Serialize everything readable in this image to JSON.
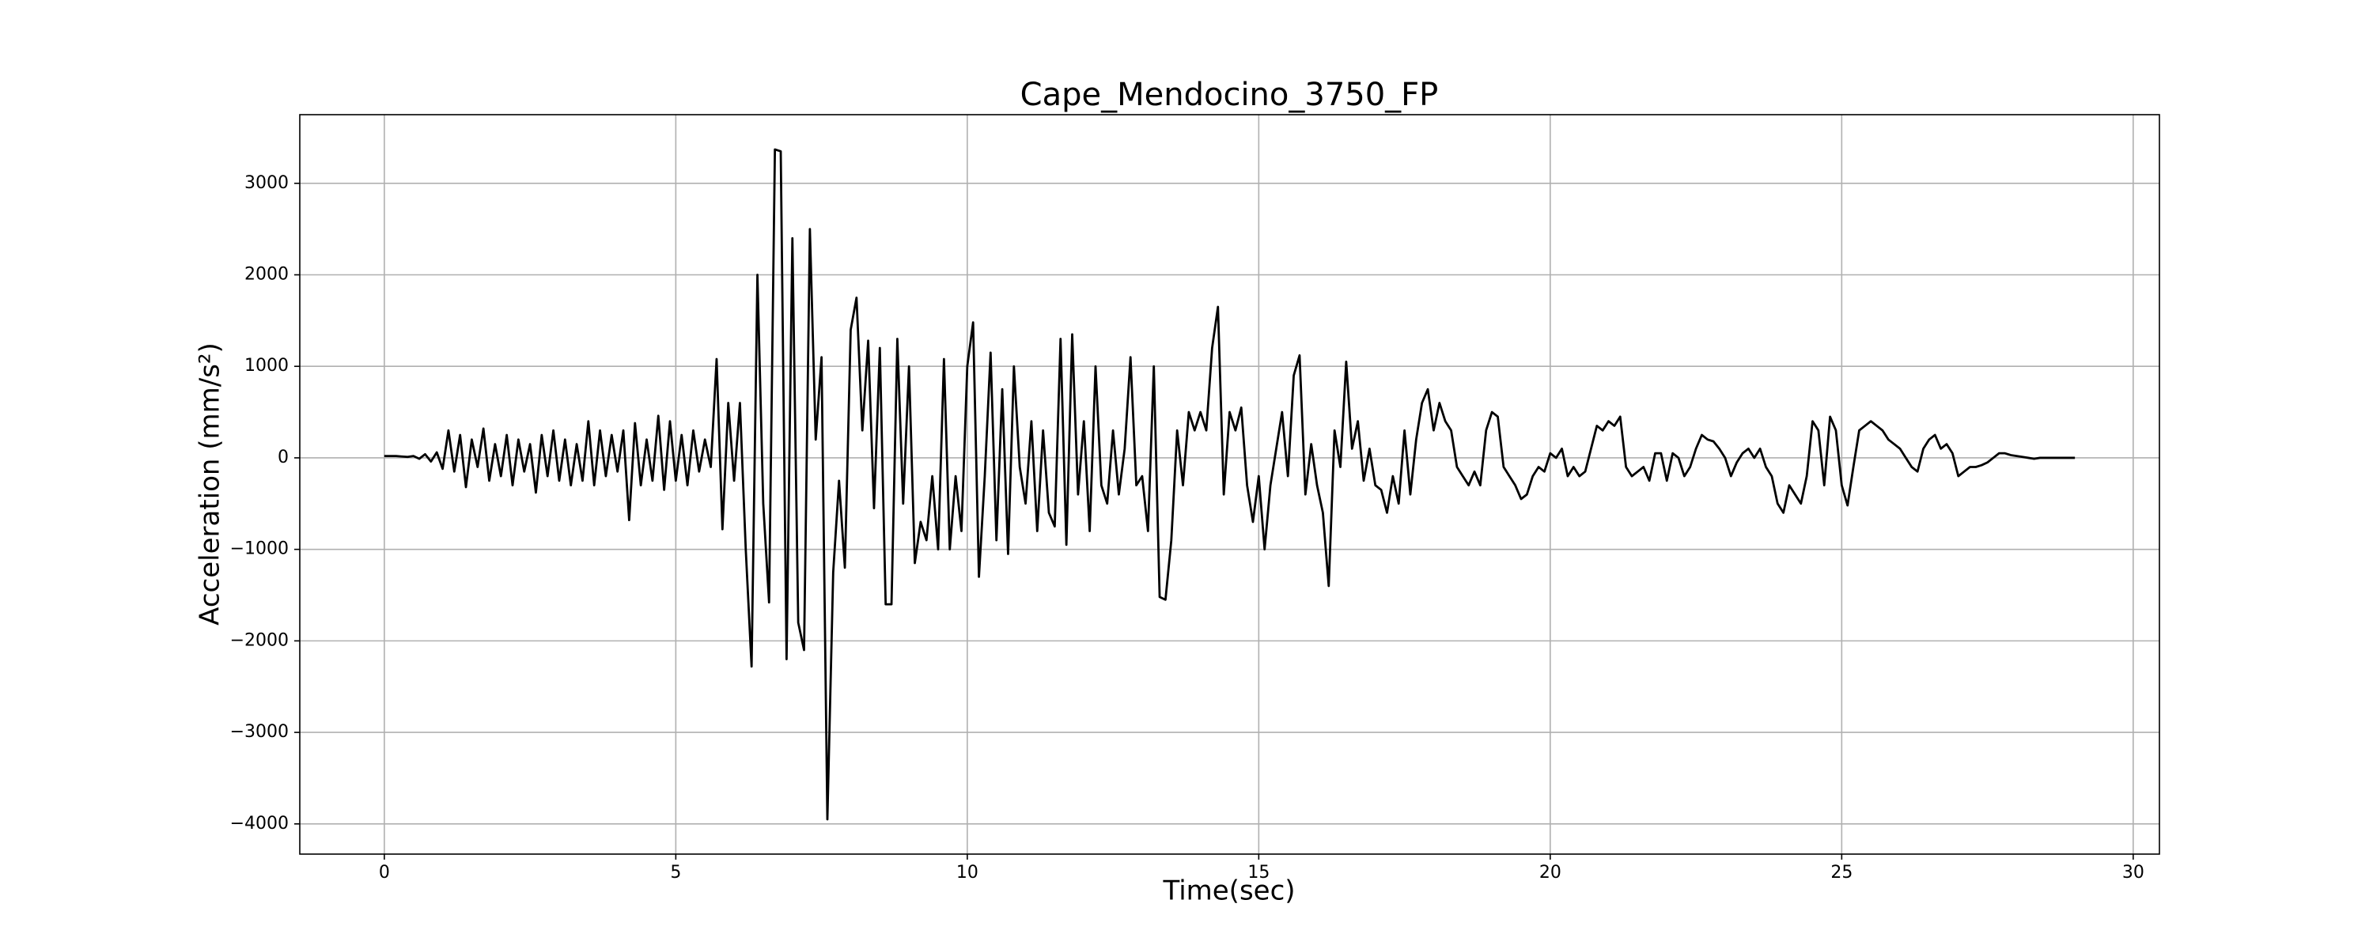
{
  "chart_data": {
    "type": "line",
    "title": "Cape_Mendocino_3750_FP",
    "xlabel": "Time(sec)",
    "ylabel": "Acceleration (mm/s²)",
    "color": "#000000",
    "grid": true,
    "xlim": [
      -1.45,
      30.45
    ],
    "ylim": [
      -4330,
      3750
    ],
    "xticks": [
      0,
      5,
      10,
      15,
      20,
      25,
      30
    ],
    "yticks": [
      {
        "value": -4000,
        "label": "−4000"
      },
      {
        "value": -3000,
        "label": "−3000"
      },
      {
        "value": -2000,
        "label": "−2000"
      },
      {
        "value": -1000,
        "label": "−1000"
      },
      0,
      1000,
      2000,
      3000
    ],
    "x": [
      0,
      0.1,
      0.2,
      0.3,
      0.4,
      0.5,
      0.6,
      0.7,
      0.8,
      0.9,
      1,
      1.1,
      1.2,
      1.3,
      1.4,
      1.5,
      1.6,
      1.7,
      1.8,
      1.9,
      2,
      2.1,
      2.2,
      2.3,
      2.4,
      2.5,
      2.6,
      2.7,
      2.8,
      2.9,
      3,
      3.1,
      3.2,
      3.3,
      3.4,
      3.5,
      3.6,
      3.7,
      3.8,
      3.9,
      4,
      4.1,
      4.2,
      4.3,
      4.4,
      4.5,
      4.6,
      4.7,
      4.8,
      4.9,
      5,
      5.1,
      5.2,
      5.3,
      5.4,
      5.5,
      5.6,
      5.7,
      5.8,
      5.9,
      6,
      6.1,
      6.2,
      6.3,
      6.4,
      6.5,
      6.6,
      6.7,
      6.8,
      6.9,
      7,
      7.1,
      7.2,
      7.3,
      7.4,
      7.5,
      7.6,
      7.7,
      7.8,
      7.9,
      8,
      8.1,
      8.2,
      8.3,
      8.4,
      8.5,
      8.6,
      8.7,
      8.8,
      8.9,
      9,
      9.1,
      9.2,
      9.3,
      9.4,
      9.5,
      9.6,
      9.7,
      9.8,
      9.9,
      10,
      10.1,
      10.2,
      10.3,
      10.4,
      10.5,
      10.6,
      10.7,
      10.8,
      10.9,
      11,
      11.1,
      11.2,
      11.3,
      11.4,
      11.5,
      11.6,
      11.7,
      11.8,
      11.9,
      12,
      12.1,
      12.2,
      12.3,
      12.4,
      12.5,
      12.6,
      12.7,
      12.8,
      12.9,
      13,
      13.1,
      13.2,
      13.3,
      13.4,
      13.5,
      13.6,
      13.7,
      13.8,
      13.9,
      14,
      14.1,
      14.2,
      14.3,
      14.4,
      14.5,
      14.6,
      14.7,
      14.8,
      14.9,
      15,
      15.1,
      15.2,
      15.3,
      15.4,
      15.5,
      15.6,
      15.7,
      15.8,
      15.9,
      16,
      16.1,
      16.2,
      16.3,
      16.4,
      16.5,
      16.6,
      16.7,
      16.8,
      16.9,
      17,
      17.1,
      17.2,
      17.3,
      17.4,
      17.5,
      17.6,
      17.7,
      17.8,
      17.9,
      18,
      18.1,
      18.2,
      18.3,
      18.4,
      18.5,
      18.6,
      18.7,
      18.8,
      18.9,
      19,
      19.1,
      19.2,
      19.3,
      19.4,
      19.5,
      19.6,
      19.7,
      19.8,
      19.9,
      20,
      20.1,
      20.2,
      20.3,
      20.4,
      20.5,
      20.6,
      20.7,
      20.8,
      20.9,
      21,
      21.1,
      21.2,
      21.3,
      21.4,
      21.5,
      21.6,
      21.7,
      21.8,
      21.9,
      22,
      22.1,
      22.2,
      22.3,
      22.4,
      22.5,
      22.6,
      22.7,
      22.8,
      22.9,
      23,
      23.1,
      23.2,
      23.3,
      23.4,
      23.5,
      23.6,
      23.7,
      23.8,
      23.9,
      24,
      24.1,
      24.2,
      24.3,
      24.4,
      24.5,
      24.6,
      24.7,
      24.8,
      24.9,
      25,
      25.1,
      25.2,
      25.3,
      25.4,
      25.5,
      25.6,
      25.7,
      25.8,
      25.9,
      26,
      26.1,
      26.2,
      26.3,
      26.4,
      26.5,
      26.6,
      26.7,
      26.8,
      26.9,
      27,
      27.1,
      27.2,
      27.3,
      27.4,
      27.5,
      27.6,
      27.7,
      27.8,
      27.9,
      28,
      28.1,
      28.2,
      28.3,
      28.4,
      28.5,
      28.6,
      28.7,
      28.8,
      28.9,
      29
    ],
    "values": [
      20,
      20,
      20,
      15,
      10,
      20,
      -10,
      40,
      -40,
      60,
      -120,
      300,
      -150,
      250,
      -320,
      200,
      -100,
      320,
      -250,
      150,
      -200,
      250,
      -300,
      200,
      -150,
      150,
      -380,
      250,
      -200,
      300,
      -250,
      200,
      -300,
      150,
      -250,
      400,
      -300,
      300,
      -200,
      250,
      -150,
      300,
      -680,
      380,
      -300,
      200,
      -250,
      460,
      -350,
      400,
      -250,
      250,
      -300,
      300,
      -150,
      200,
      -100,
      1080,
      -780,
      600,
      -250,
      600,
      -1000,
      -2280,
      2000,
      -500,
      -1580,
      3370,
      3350,
      -2200,
      2400,
      -1800,
      -2100,
      2500,
      200,
      1100,
      -3950,
      -1250,
      -250,
      -1200,
      1400,
      1750,
      300,
      1280,
      -550,
      1200,
      -1600,
      -1600,
      1300,
      -500,
      1000,
      -1150,
      -700,
      -900,
      -200,
      -1000,
      1080,
      -1000,
      -200,
      -800,
      1000,
      1480,
      -1300,
      -200,
      1150,
      -900,
      750,
      -1050,
      1000,
      -100,
      -500,
      400,
      -800,
      300,
      -600,
      -750,
      1300,
      -950,
      1350,
      -400,
      400,
      -800,
      1000,
      -300,
      -500,
      300,
      -400,
      100,
      1100,
      -300,
      -200,
      -800,
      1000,
      -1520,
      -1550,
      -900,
      300,
      -300,
      500,
      300,
      500,
      300,
      1200,
      1650,
      -400,
      500,
      300,
      550,
      -300,
      -700,
      -200,
      -1000,
      -300,
      100,
      500,
      -200,
      900,
      1120,
      -400,
      150,
      -300,
      -600,
      -1400,
      300,
      -100,
      1050,
      100,
      400,
      -250,
      100,
      -300,
      -350,
      -600,
      -200,
      -500,
      300,
      -400,
      200,
      600,
      750,
      300,
      600,
      400,
      300,
      -100,
      -200,
      -300,
      -150,
      -300,
      300,
      500,
      450,
      -100,
      -200,
      -300,
      -450,
      -400,
      -200,
      -100,
      -150,
      50,
      0,
      100,
      -200,
      -100,
      -200,
      -150,
      100,
      350,
      300,
      400,
      350,
      450,
      -100,
      -200,
      -150,
      -100,
      -250,
      50,
      50,
      -250,
      50,
      0,
      -200,
      -100,
      100,
      250,
      200,
      180,
      100,
      0,
      -200,
      -50,
      50,
      100,
      0,
      100,
      -100,
      -200,
      -500,
      -600,
      -300,
      -400,
      -500,
      -200,
      400,
      300,
      -300,
      450,
      300,
      -300,
      -520,
      -100,
      300,
      350,
      400,
      350,
      300,
      200,
      150,
      100,
      0,
      -100,
      -150,
      100,
      200,
      250,
      100,
      150,
      50,
      -200,
      -150,
      -100,
      -100,
      -80,
      -50,
      0,
      50,
      50,
      30,
      20,
      10,
      0,
      -10,
      0,
      0,
      0,
      0,
      0,
      0,
      0
    ]
  }
}
